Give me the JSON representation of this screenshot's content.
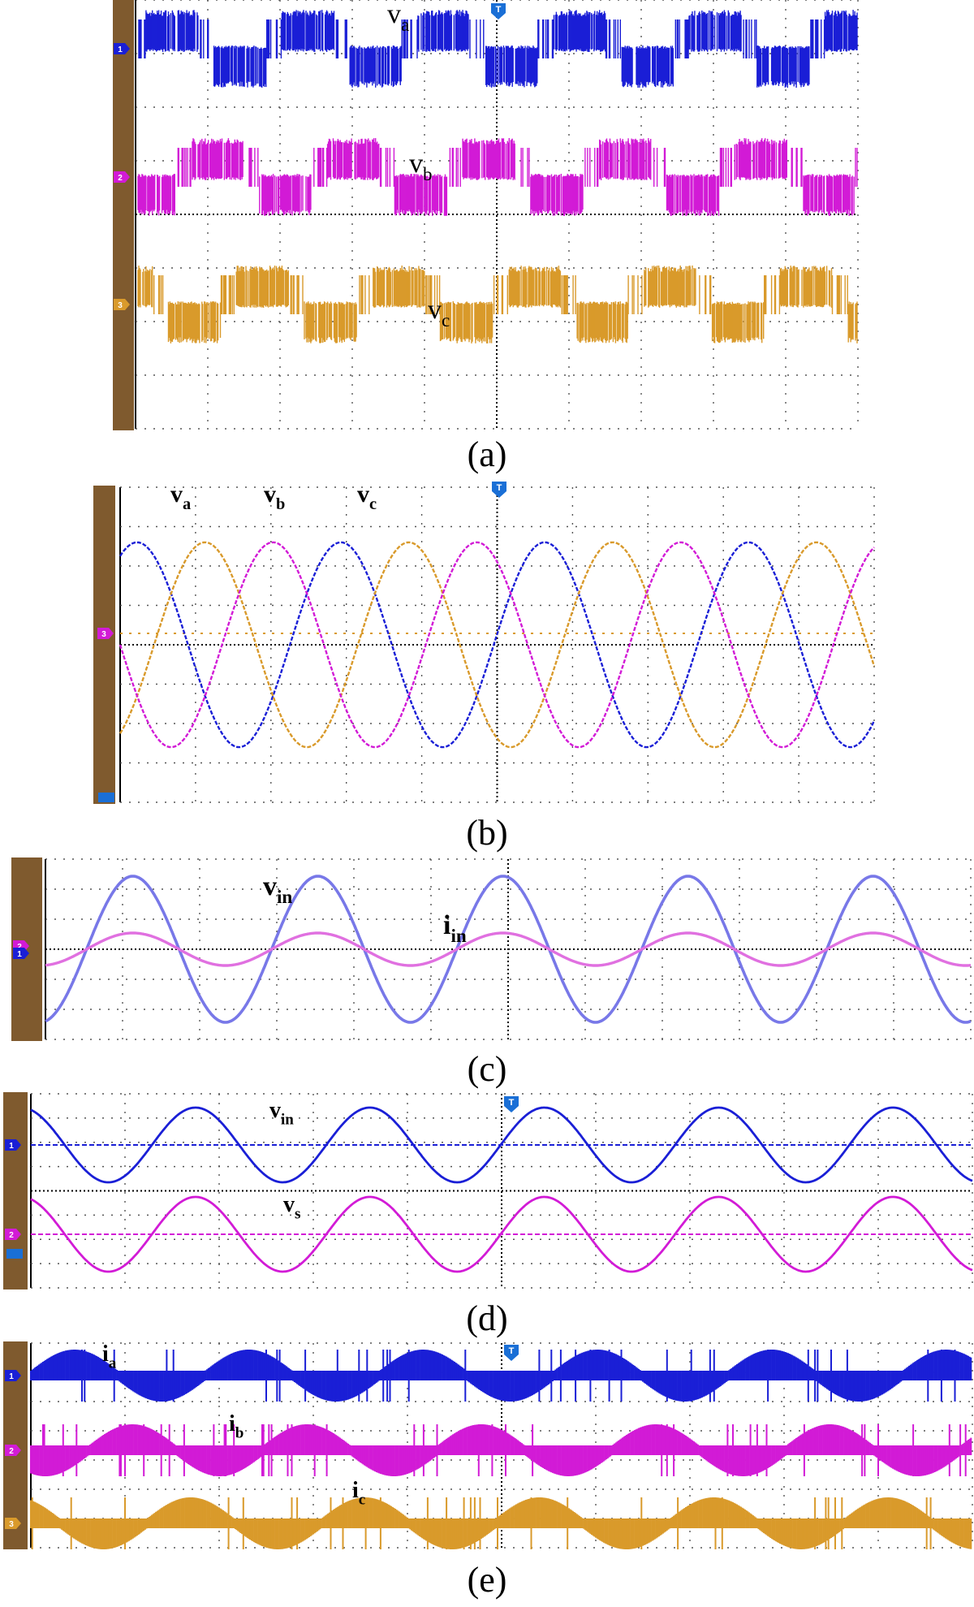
{
  "colors": {
    "blue": "#1a1fd6",
    "blue_light": "#7878e8",
    "magenta": "#d21bd6",
    "magenta_light": "#e070e0",
    "orange": "#d99a2b",
    "side_bar": "#7f5a2e",
    "marker_blue": "#1a6fd6",
    "grid": "#555555"
  },
  "icons": {
    "trigger": "trigger-marker-icon",
    "channel": "channel-marker-icon"
  },
  "chart_data": [
    {
      "id": "a",
      "type": "line",
      "caption": "(a)",
      "title": "",
      "xlabel": "",
      "ylabel": "",
      "grid": true,
      "trigger_marker": "T",
      "channel_markers": [
        "1",
        "2",
        "3"
      ],
      "waveform": "pwm-multilevel",
      "series": [
        {
          "name": "va",
          "label_main": "v",
          "label_sub": "a",
          "channel": "1",
          "color": "#1a1fd6",
          "phase_deg": 0,
          "cycles": 5.3
        },
        {
          "name": "vb",
          "label_main": "v",
          "label_sub": "b",
          "channel": "2",
          "color": "#d21bd6",
          "phase_deg": 120,
          "cycles": 5.3
        },
        {
          "name": "vc",
          "label_main": "v",
          "label_sub": "c",
          "channel": "3",
          "color": "#d99a2b",
          "phase_deg": 240,
          "cycles": 5.3
        }
      ]
    },
    {
      "id": "b",
      "type": "line",
      "caption": "(b)",
      "title": "",
      "xlabel": "",
      "ylabel": "",
      "grid": true,
      "trigger_marker": "T",
      "channel_markers": [
        "3"
      ],
      "waveform": "sinusoid",
      "series": [
        {
          "name": "va",
          "label_main": "v",
          "label_sub": "a",
          "color": "#1a1fd6",
          "amplitude_div": 2.6,
          "cycles": 3.7
        },
        {
          "name": "vb",
          "label_main": "v",
          "label_sub": "b",
          "color": "#d99a2b",
          "amplitude_div": 2.6,
          "cycles": 3.7
        },
        {
          "name": "vc",
          "label_main": "v",
          "label_sub": "c",
          "color": "#d21bd6",
          "amplitude_div": 2.6,
          "cycles": 3.7
        }
      ]
    },
    {
      "id": "c",
      "type": "line",
      "caption": "(c)",
      "title": "",
      "xlabel": "",
      "ylabel": "",
      "grid": true,
      "trigger_marker": "",
      "channel_markers": [
        "2",
        "1"
      ],
      "waveform": "sinusoid",
      "series": [
        {
          "name": "vin",
          "label_main": "v",
          "label_sub": "in",
          "color": "#7878e8",
          "amplitude_div": 2.4,
          "cycles": 5
        },
        {
          "name": "iin",
          "label_main": "i",
          "label_sub": "in",
          "color": "#e070e0",
          "amplitude_div": 0.55,
          "cycles": 5
        }
      ]
    },
    {
      "id": "d",
      "type": "line",
      "caption": "(d)",
      "title": "",
      "xlabel": "",
      "ylabel": "",
      "grid": true,
      "trigger_marker": "T",
      "channel_markers": [
        "1",
        "2"
      ],
      "waveform": "sinusoid",
      "series": [
        {
          "name": "vin",
          "label_main": "v",
          "label_sub": "in",
          "channel": "1",
          "color": "#1a1fd6",
          "amplitude_div": 1.0,
          "cycles": 5.4
        },
        {
          "name": "vs",
          "label_main": "v",
          "label_sub": "s",
          "channel": "2",
          "color": "#d21bd6",
          "amplitude_div": 1.0,
          "cycles": 5.4
        }
      ]
    },
    {
      "id": "e",
      "type": "line",
      "caption": "(e)",
      "title": "",
      "xlabel": "",
      "ylabel": "",
      "grid": true,
      "trigger_marker": "T",
      "channel_markers": [
        "1",
        "2",
        "3"
      ],
      "waveform": "pwm-current",
      "series": [
        {
          "name": "ia",
          "label_main": "i",
          "label_sub": "a",
          "channel": "1",
          "color": "#1a1fd6",
          "cycles": 5.4
        },
        {
          "name": "ib",
          "label_main": "i",
          "label_sub": "b",
          "channel": "2",
          "color": "#d21bd6",
          "cycles": 5.4
        },
        {
          "name": "ic",
          "label_main": "i",
          "label_sub": "c",
          "channel": "3",
          "color": "#d99a2b",
          "cycles": 5.4
        }
      ]
    }
  ]
}
